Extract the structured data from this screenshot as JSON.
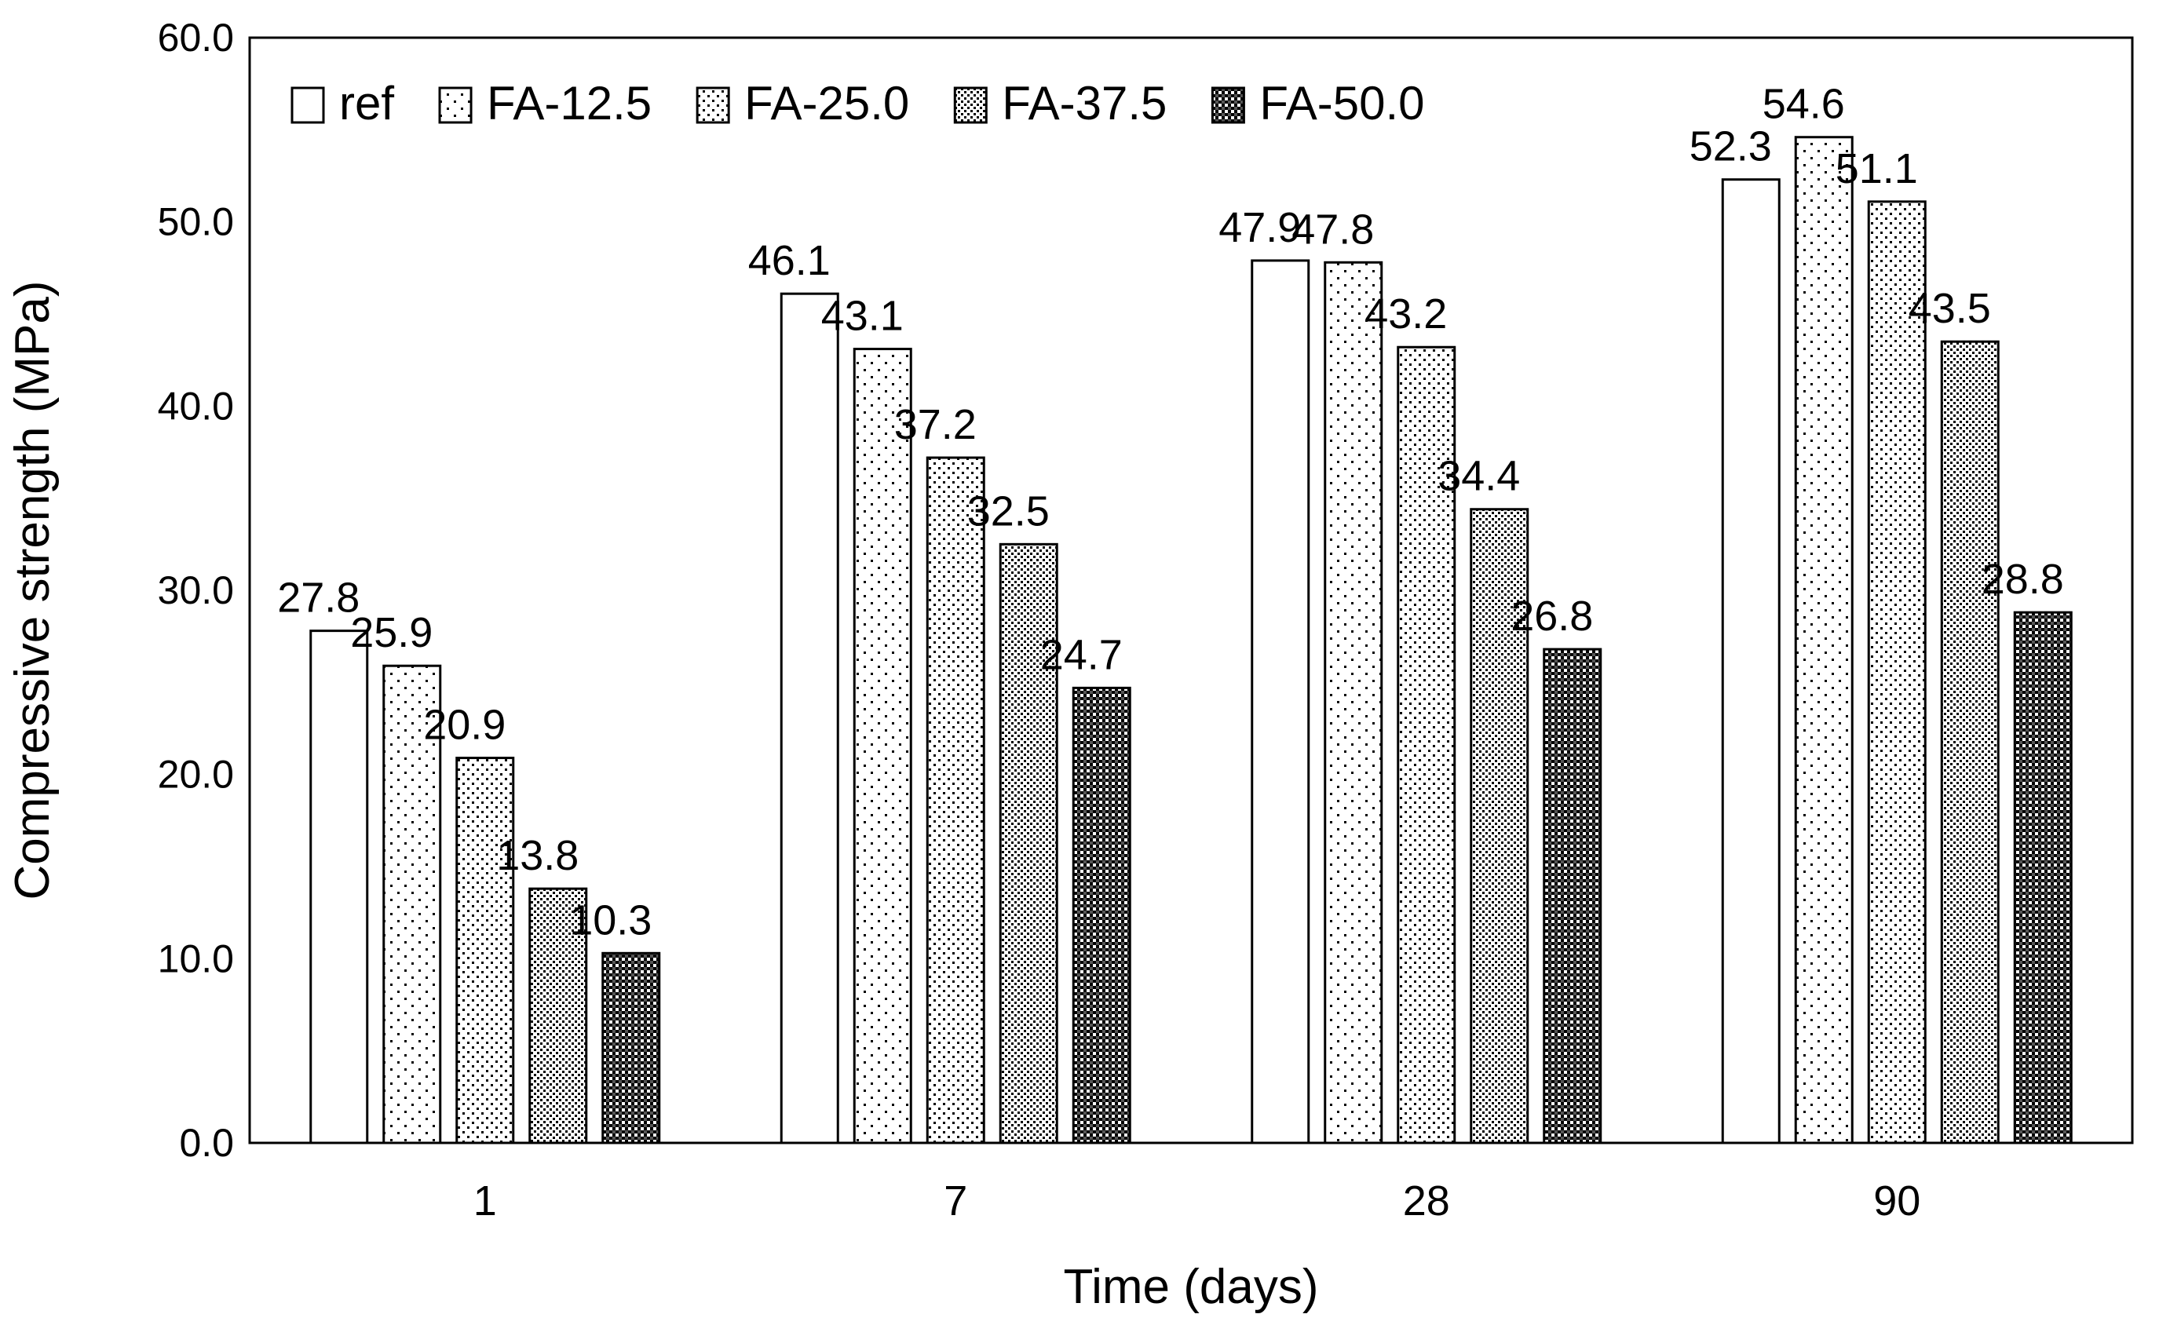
{
  "chart_data": {
    "type": "bar",
    "title": "",
    "xlabel": "Time (days)",
    "ylabel": "Compressive strength (MPa)",
    "categories": [
      "1",
      "7",
      "28",
      "90"
    ],
    "ylim": [
      0,
      60
    ],
    "yticks": [
      "0.0",
      "10.0",
      "20.0",
      "30.0",
      "40.0",
      "50.0",
      "60.0"
    ],
    "grid": false,
    "legend_position": "top-left",
    "series": [
      {
        "name": "ref",
        "values": [
          27.8,
          46.1,
          47.9,
          52.3
        ],
        "labels": [
          "27.8",
          "46.1",
          "47.9",
          "52.3"
        ],
        "pattern": "none"
      },
      {
        "name": "FA-12.5",
        "values": [
          25.9,
          43.1,
          47.8,
          54.6
        ],
        "labels": [
          "25.9",
          "43.1",
          "47.8",
          "54.6"
        ],
        "pattern": "dots-sparse"
      },
      {
        "name": "FA-25.0",
        "values": [
          20.9,
          37.2,
          43.2,
          51.1
        ],
        "labels": [
          "20.9",
          "37.2",
          "43.2",
          "51.1"
        ],
        "pattern": "dots-medium"
      },
      {
        "name": "FA-37.5",
        "values": [
          13.8,
          32.5,
          34.4,
          43.5
        ],
        "labels": [
          "13.8",
          "32.5",
          "34.4",
          "43.5"
        ],
        "pattern": "dots-dense"
      },
      {
        "name": "FA-50.0",
        "values": [
          10.3,
          24.7,
          26.8,
          28.8
        ],
        "labels": [
          "10.3",
          "24.7",
          "26.8",
          "28.8"
        ],
        "pattern": "checker"
      }
    ],
    "colors": {
      "stroke": "#000000",
      "fill": "#ffffff"
    }
  }
}
